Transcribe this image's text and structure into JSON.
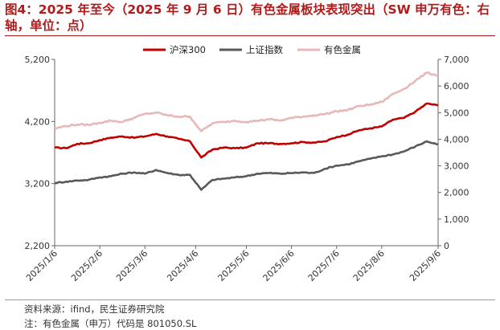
{
  "header": {
    "title": "图4：2025 年至今（2025 年 9 月 6 日）有色金属板块表现突出（SW 申万有色：右轴，单位：点）"
  },
  "footer": {
    "source": "资料来源：ifind，民生证券研究院",
    "note": "注：有色金属（申万）代码是 801050.SL"
  },
  "colors": {
    "hushen300": "#c00000",
    "shanghai": "#595959",
    "nonferrous": "#e8b8b8",
    "title": "#b01c1c"
  },
  "chart_data": {
    "type": "line",
    "title": "",
    "xlabel": "",
    "ylabel": "",
    "x": [
      "2025/1/6",
      "2025/1/13",
      "2025/1/20",
      "2025/1/27",
      "2025/2/6",
      "2025/2/13",
      "2025/2/20",
      "2025/2/27",
      "2025/3/6",
      "2025/3/13",
      "2025/3/20",
      "2025/3/27",
      "2025/4/3",
      "2025/4/7",
      "2025/4/14",
      "2025/4/21",
      "2025/4/28",
      "2025/5/6",
      "2025/5/13",
      "2025/5/20",
      "2025/5/27",
      "2025/6/6",
      "2025/6/13",
      "2025/6/20",
      "2025/6/27",
      "2025/7/6",
      "2025/7/13",
      "2025/7/20",
      "2025/7/27",
      "2025/8/6",
      "2025/8/13",
      "2025/8/20",
      "2025/8/27",
      "2025/9/1",
      "2025/9/6"
    ],
    "x_ticks": [
      "2025/1/6",
      "2025/2/6",
      "2025/3/6",
      "2025/4/6",
      "2025/5/6",
      "2025/6/6",
      "2025/7/6",
      "2025/8/6",
      "2025/9/6"
    ],
    "x_tick_index": [
      0,
      4,
      8,
      12.5,
      17,
      21,
      25,
      29,
      34
    ],
    "left_axis": {
      "ylim": [
        2200,
        5200
      ],
      "ticks": [
        2200,
        3200,
        4200,
        5200
      ],
      "tick_labels": [
        "2,200",
        "3,200",
        "4,200",
        "5,200"
      ]
    },
    "right_axis": {
      "ylim": [
        0,
        7000
      ],
      "ticks": [
        0,
        1000,
        2000,
        3000,
        4000,
        5000,
        6000,
        7000
      ],
      "tick_labels": [
        "0",
        "1,000",
        "2,000",
        "3,000",
        "4,000",
        "5,000",
        "6,000",
        "7,000"
      ]
    },
    "series": [
      {
        "name": "沪深300",
        "axis": "left",
        "color": "#c00000",
        "values": [
          3780,
          3770,
          3840,
          3850,
          3900,
          3940,
          3960,
          3940,
          3960,
          4000,
          3960,
          3920,
          3880,
          3620,
          3750,
          3780,
          3770,
          3780,
          3850,
          3850,
          3840,
          3850,
          3870,
          3860,
          3880,
          3950,
          3990,
          4060,
          4090,
          4120,
          4230,
          4260,
          4360,
          4490,
          4460
        ]
      },
      {
        "name": "上证指数",
        "axis": "left",
        "color": "#595959",
        "values": [
          3210,
          3230,
          3250,
          3260,
          3300,
          3320,
          3360,
          3380,
          3360,
          3420,
          3370,
          3340,
          3340,
          3100,
          3260,
          3280,
          3300,
          3320,
          3360,
          3370,
          3360,
          3370,
          3380,
          3370,
          3440,
          3490,
          3510,
          3560,
          3600,
          3640,
          3670,
          3720,
          3800,
          3880,
          3830
        ]
      },
      {
        "name": "有色金属",
        "axis": "right",
        "color": "#e8b8b8",
        "values": [
          4400,
          4500,
          4550,
          4540,
          4620,
          4700,
          4650,
          4800,
          4950,
          5000,
          4900,
          4850,
          4850,
          4300,
          4600,
          4650,
          4700,
          4650,
          4700,
          4750,
          4700,
          4800,
          4850,
          4900,
          4950,
          5050,
          5100,
          5250,
          5300,
          5400,
          5700,
          5900,
          6200,
          6500,
          6400
        ]
      }
    ],
    "grid": false,
    "legend_position": "top-center"
  }
}
